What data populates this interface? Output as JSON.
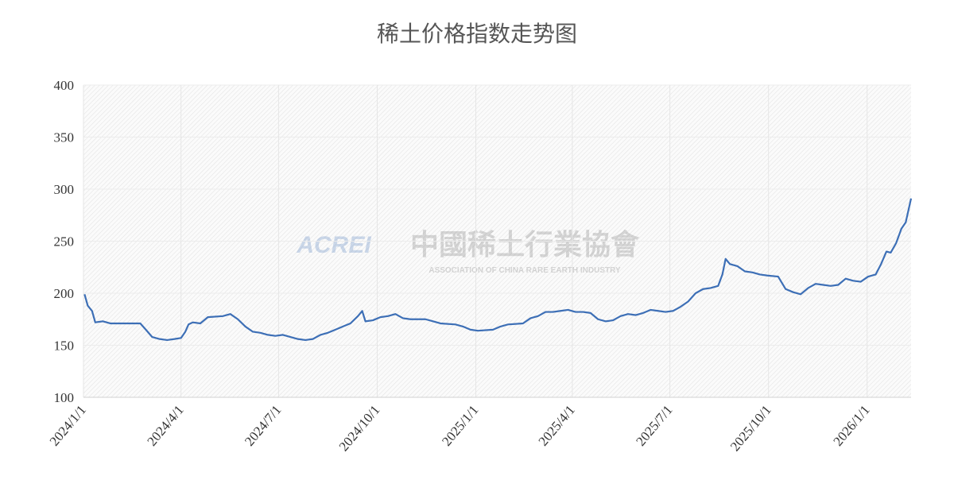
{
  "chart_data": {
    "type": "line",
    "title": "稀土价格指数走势图",
    "watermark": {
      "logo": "ACREI",
      "name": "中國稀土行業協會",
      "subtitle": "ASSOCIATION OF CHINA RARE EARTH INDUSTRY"
    },
    "color": "#3d6fb6",
    "grid": true,
    "xlim": [
      "2024/1/1",
      "2026/2/11"
    ],
    "xticks": [
      "2024/1/1",
      "2024/4/1",
      "2024/7/1",
      "2024/10/1",
      "2025/1/1",
      "2025/4/1",
      "2025/7/1",
      "2025/10/1",
      "2026/1/1"
    ],
    "ylim": [
      100,
      400
    ],
    "yticks": [
      100,
      150,
      200,
      250,
      300,
      350,
      400
    ],
    "x": [
      "2024/1/2",
      "2024/1/5",
      "2024/1/9",
      "2024/1/12",
      "2024/1/19",
      "2024/1/26",
      "2024/2/23",
      "2024/2/29",
      "2024/3/5",
      "2024/3/12",
      "2024/3/19",
      "2024/3/26",
      "2024/4/1",
      "2024/4/5",
      "2024/4/8",
      "2024/4/12",
      "2024/4/19",
      "2024/4/26",
      "2024/5/10",
      "2024/5/17",
      "2024/5/24",
      "2024/5/31",
      "2024/6/7",
      "2024/6/14",
      "2024/6/21",
      "2024/6/28",
      "2024/7/5",
      "2024/7/12",
      "2024/7/19",
      "2024/7/26",
      "2024/8/2",
      "2024/8/9",
      "2024/8/16",
      "2024/8/23",
      "2024/8/30",
      "2024/9/6",
      "2024/9/13",
      "2024/9/17",
      "2024/9/20",
      "2024/9/27",
      "2024/10/4",
      "2024/10/11",
      "2024/10/18",
      "2024/10/25",
      "2024/11/1",
      "2024/11/15",
      "2024/11/22",
      "2024/11/29",
      "2024/12/13",
      "2024/12/20",
      "2024/12/27",
      "2025/1/3",
      "2025/1/17",
      "2025/1/24",
      "2025/1/31",
      "2025/2/14",
      "2025/2/21",
      "2025/2/28",
      "2025/3/7",
      "2025/3/14",
      "2025/3/21",
      "2025/3/28",
      "2025/4/4",
      "2025/4/11",
      "2025/4/18",
      "2025/4/25",
      "2025/5/2",
      "2025/5/9",
      "2025/5/16",
      "2025/5/23",
      "2025/5/30",
      "2025/6/6",
      "2025/6/13",
      "2025/6/20",
      "2025/6/27",
      "2025/7/4",
      "2025/7/11",
      "2025/7/18",
      "2025/7/25",
      "2025/8/1",
      "2025/8/8",
      "2025/8/15",
      "2025/8/19",
      "2025/8/22",
      "2025/8/26",
      "2025/9/2",
      "2025/9/9",
      "2025/9/16",
      "2025/9/23",
      "2025/9/30",
      "2025/10/10",
      "2025/10/17",
      "2025/10/24",
      "2025/10/31",
      "2025/11/7",
      "2025/11/14",
      "2025/11/21",
      "2025/11/28",
      "2025/12/5",
      "2025/12/12",
      "2025/12/19",
      "2025/12/26",
      "2026/1/2",
      "2026/1/9",
      "2026/1/14",
      "2026/1/19",
      "2026/1/23",
      "2026/1/28",
      "2026/2/2",
      "2026/2/6",
      "2026/2/11"
    ],
    "values": [
      199,
      188,
      183,
      172,
      173,
      171,
      171,
      164,
      158,
      156,
      155,
      156,
      157,
      163,
      170,
      172,
      171,
      177,
      178,
      180,
      175,
      168,
      163,
      162,
      160,
      159,
      160,
      158,
      156,
      155,
      156,
      160,
      162,
      165,
      168,
      171,
      178,
      183,
      173,
      174,
      177,
      178,
      180,
      176,
      175,
      175,
      173,
      171,
      170,
      168,
      165,
      164,
      165,
      168,
      170,
      171,
      176,
      178,
      182,
      182,
      183,
      184,
      182,
      182,
      181,
      175,
      173,
      174,
      178,
      180,
      179,
      181,
      184,
      183,
      182,
      183,
      187,
      192,
      200,
      204,
      205,
      207,
      218,
      233,
      228,
      226,
      221,
      220,
      218,
      217,
      216,
      204,
      201,
      199,
      205,
      209,
      208,
      207,
      208,
      214,
      212,
      211,
      216,
      218,
      228,
      240,
      239,
      248,
      262,
      268,
      291
    ]
  }
}
